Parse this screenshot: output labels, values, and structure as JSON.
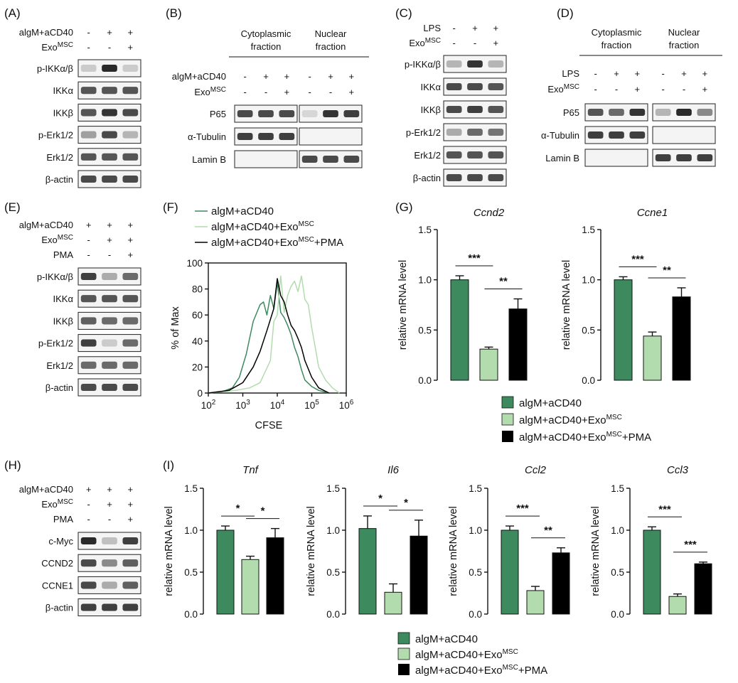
{
  "colors": {
    "dark_green": "#3d8a5e",
    "light_green": "#b3dcae",
    "black": "#000000"
  },
  "panels": {
    "A": {
      "letter": "(A)",
      "conditions": [
        {
          "name": "algM+aCD40",
          "signs": [
            "-",
            "+",
            "+"
          ]
        },
        {
          "name": "Exo",
          "sup": "MSC",
          "signs": [
            "-",
            "-",
            "+"
          ]
        }
      ],
      "blots": [
        "p-IKKα/β",
        "IKKα",
        "IKKβ",
        "p-Erk1/2",
        "Erk1/2",
        "β-actin"
      ]
    },
    "B": {
      "letter": "(B)",
      "fractions": [
        "Cytoplasmic",
        "fraction",
        "Nuclear",
        "fraction"
      ],
      "conditions": [
        {
          "name": "algM+aCD40",
          "signs": [
            "-",
            "+",
            "+",
            "-",
            "+",
            "+"
          ]
        },
        {
          "name": "Exo",
          "sup": "MSC",
          "signs": [
            "-",
            "-",
            "+",
            "-",
            "-",
            "+"
          ]
        }
      ],
      "blots": [
        "P65",
        "α-Tubulin",
        "Lamin B"
      ]
    },
    "C": {
      "letter": "(C)",
      "conditions": [
        {
          "name": "LPS",
          "signs": [
            "-",
            "+",
            "+"
          ]
        },
        {
          "name": "Exo",
          "sup": "MSC",
          "signs": [
            "-",
            "-",
            "+"
          ]
        }
      ],
      "blots": [
        "p-IKKα/β",
        "IKKα",
        "IKKβ",
        "p-Erk1/2",
        "Erk1/2",
        "β-actin"
      ]
    },
    "D": {
      "letter": "(D)",
      "fractions": [
        "Cytoplasmic",
        "fraction",
        "Nuclear",
        "fraction"
      ],
      "conditions": [
        {
          "name": "LPS",
          "signs": [
            "-",
            "+",
            "+",
            "-",
            "+",
            "+"
          ]
        },
        {
          "name": "Exo",
          "sup": "MSC",
          "signs": [
            "-",
            "-",
            "+",
            "-",
            "-",
            "+"
          ]
        }
      ],
      "blots": [
        "P65",
        "α-Tubulin",
        "Lamin B"
      ]
    },
    "E": {
      "letter": "(E)",
      "conditions": [
        {
          "name": "algM+aCD40",
          "signs": [
            "+",
            "+",
            "+"
          ]
        },
        {
          "name": "Exo",
          "sup": "MSC",
          "signs": [
            "-",
            "+",
            "+"
          ]
        },
        {
          "name": "PMA",
          "signs": [
            "-",
            "-",
            "+"
          ]
        }
      ],
      "blots": [
        "p-IKKα/β",
        "IKKα",
        "IKKβ",
        "p-Erk1/2",
        "Erk1/2",
        "β-actin"
      ]
    },
    "F": {
      "letter": "(F)",
      "legend": [
        {
          "main": "algM+aCD40"
        },
        {
          "main": "algM+aCD40+Exo",
          "sup": "MSC"
        },
        {
          "main": "algM+aCD40+Exo",
          "sup": "MSC",
          "tail": "+PMA"
        }
      ]
    },
    "G": {
      "letter": "(G)"
    },
    "H": {
      "letter": "(H)",
      "conditions": [
        {
          "name": "algM+aCD40",
          "signs": [
            "+",
            "+",
            "+"
          ]
        },
        {
          "name": "Exo",
          "sup": "MSC",
          "signs": [
            "-",
            "+",
            "+"
          ]
        },
        {
          "name": "PMA",
          "signs": [
            "-",
            "-",
            "+"
          ]
        }
      ],
      "blots": [
        "c-Myc",
        "CCND2",
        "CCNE1",
        "β-actin"
      ]
    },
    "I": {
      "letter": "(I)"
    }
  },
  "bar_legend": [
    {
      "main": "algM+aCD40"
    },
    {
      "main": "algM+aCD40+Exo",
      "sup": "MSC"
    },
    {
      "main": "algM+aCD40+Exo",
      "sup": "MSC",
      "tail": "+PMA"
    }
  ],
  "chart_data": [
    {
      "id": "F",
      "type": "line",
      "title": "",
      "xlabel": "CFSE",
      "ylabel": "% of Max",
      "xscale": "log",
      "xlim": [
        100,
        1000000
      ],
      "ylim": [
        0,
        100
      ],
      "xticks": [
        {
          "base": "10",
          "exp": "2"
        },
        {
          "base": "10",
          "exp": "3"
        },
        {
          "base": "10",
          "exp": "4"
        },
        {
          "base": "10",
          "exp": "5"
        },
        {
          "base": "10",
          "exp": "6"
        }
      ],
      "yticks": [
        0,
        20,
        40,
        60,
        80,
        100
      ],
      "series": [
        {
          "name": "algM+aCD40",
          "color": "#3d8a5e",
          "x": [
            2.0,
            2.4,
            2.7,
            2.9,
            3.1,
            3.3,
            3.5,
            3.6,
            3.7,
            3.8,
            3.9,
            4.0,
            4.1,
            4.2,
            4.3,
            4.4,
            4.5,
            4.6,
            4.7,
            4.8,
            5.0,
            5.2,
            5.5
          ],
          "y": [
            0,
            1,
            4,
            12,
            30,
            55,
            68,
            70,
            60,
            75,
            65,
            85,
            62,
            58,
            52,
            45,
            35,
            28,
            18,
            10,
            5,
            2,
            0
          ]
        },
        {
          "name": "algM+aCD40+ExoMSC",
          "color": "#b3dcae",
          "x": [
            2.0,
            2.8,
            3.2,
            3.5,
            3.8,
            3.9,
            4.0,
            4.1,
            4.2,
            4.3,
            4.4,
            4.5,
            4.6,
            4.7,
            4.8,
            4.9,
            5.0,
            5.1,
            5.2,
            5.4,
            5.6,
            5.8
          ],
          "y": [
            0,
            2,
            4,
            8,
            25,
            55,
            60,
            90,
            62,
            75,
            82,
            86,
            78,
            90,
            72,
            68,
            50,
            35,
            20,
            10,
            4,
            0
          ]
        },
        {
          "name": "algM+aCD40+ExoMSC+PMA",
          "color": "#000000",
          "x": [
            2.0,
            2.6,
            3.0,
            3.3,
            3.5,
            3.7,
            3.9,
            4.0,
            4.1,
            4.2,
            4.3,
            4.4,
            4.5,
            4.6,
            4.7,
            4.8,
            5.0,
            5.2,
            5.5
          ],
          "y": [
            0,
            2,
            8,
            20,
            32,
            48,
            65,
            88,
            75,
            70,
            60,
            52,
            48,
            42,
            35,
            25,
            12,
            4,
            0
          ]
        }
      ]
    },
    {
      "id": "G1",
      "type": "bar",
      "title": "Ccnd2",
      "ylabel": "relative mRNA level",
      "ylim": [
        0,
        1.5
      ],
      "yticks": [
        "0.0",
        "0.5",
        "1.0",
        "1.5"
      ],
      "categories": [
        "algM+aCD40",
        "algM+aCD40+ExoMSC",
        "algM+aCD40+ExoMSC+PMA"
      ],
      "values": [
        1.0,
        0.31,
        0.71
      ],
      "errors": [
        0.04,
        0.02,
        0.1
      ],
      "annotations": [
        {
          "label": "***",
          "from": 0,
          "to": 1
        },
        {
          "label": "**",
          "from": 1,
          "to": 2
        }
      ]
    },
    {
      "id": "G2",
      "type": "bar",
      "title": "Ccne1",
      "ylabel": "relative mRNA level",
      "ylim": [
        0,
        1.5
      ],
      "yticks": [
        "0.0",
        "0.5",
        "1.0",
        "1.5"
      ],
      "categories": [
        "algM+aCD40",
        "algM+aCD40+ExoMSC",
        "algM+aCD40+ExoMSC+PMA"
      ],
      "values": [
        1.0,
        0.44,
        0.83
      ],
      "errors": [
        0.03,
        0.04,
        0.09
      ],
      "annotations": [
        {
          "label": "***",
          "from": 0,
          "to": 1
        },
        {
          "label": "**",
          "from": 1,
          "to": 2
        }
      ]
    },
    {
      "id": "I1",
      "type": "bar",
      "title": "Tnf",
      "ylabel": "relative mRNA level",
      "ylim": [
        0,
        1.5
      ],
      "yticks": [
        "0.0",
        "0.5",
        "1.0",
        "1.5"
      ],
      "categories": [
        "algM+aCD40",
        "algM+aCD40+ExoMSC",
        "algM+aCD40+ExoMSC+PMA"
      ],
      "values": [
        1.0,
        0.65,
        0.91
      ],
      "errors": [
        0.05,
        0.04,
        0.11
      ],
      "annotations": [
        {
          "label": "*",
          "from": 0,
          "to": 1
        },
        {
          "label": "*",
          "from": 1,
          "to": 2
        }
      ]
    },
    {
      "id": "I2",
      "type": "bar",
      "title": "Il6",
      "ylabel": "relative mRNA level",
      "ylim": [
        0,
        1.5
      ],
      "yticks": [
        "0.0",
        "0.5",
        "1.0",
        "1.5"
      ],
      "categories": [
        "algM+aCD40",
        "algM+aCD40+ExoMSC",
        "algM+aCD40+ExoMSC+PMA"
      ],
      "values": [
        1.02,
        0.26,
        0.93
      ],
      "errors": [
        0.15,
        0.1,
        0.19
      ],
      "annotations": [
        {
          "label": "*",
          "from": 0,
          "to": 1
        },
        {
          "label": "*",
          "from": 1,
          "to": 2
        }
      ]
    },
    {
      "id": "I3",
      "type": "bar",
      "title": "Ccl2",
      "ylabel": "relative mRNA level",
      "ylim": [
        0,
        1.5
      ],
      "yticks": [
        "0.0",
        "0.5",
        "1.0",
        "1.5"
      ],
      "categories": [
        "algM+aCD40",
        "algM+aCD40+ExoMSC",
        "algM+aCD40+ExoMSC+PMA"
      ],
      "values": [
        1.0,
        0.28,
        0.73
      ],
      "errors": [
        0.05,
        0.05,
        0.06
      ],
      "annotations": [
        {
          "label": "***",
          "from": 0,
          "to": 1
        },
        {
          "label": "**",
          "from": 1,
          "to": 2
        }
      ]
    },
    {
      "id": "I4",
      "type": "bar",
      "title": "Ccl3",
      "ylabel": "relative mRNA level",
      "ylim": [
        0,
        1.5
      ],
      "yticks": [
        "0.0",
        "0.5",
        "1.0",
        "1.5"
      ],
      "categories": [
        "algM+aCD40",
        "algM+aCD40+ExoMSC",
        "algM+aCD40+ExoMSC+PMA"
      ],
      "values": [
        1.0,
        0.21,
        0.6
      ],
      "errors": [
        0.04,
        0.03,
        0.02
      ],
      "annotations": [
        {
          "label": "***",
          "from": 0,
          "to": 1
        },
        {
          "label": "***",
          "from": 1,
          "to": 2
        }
      ]
    }
  ]
}
